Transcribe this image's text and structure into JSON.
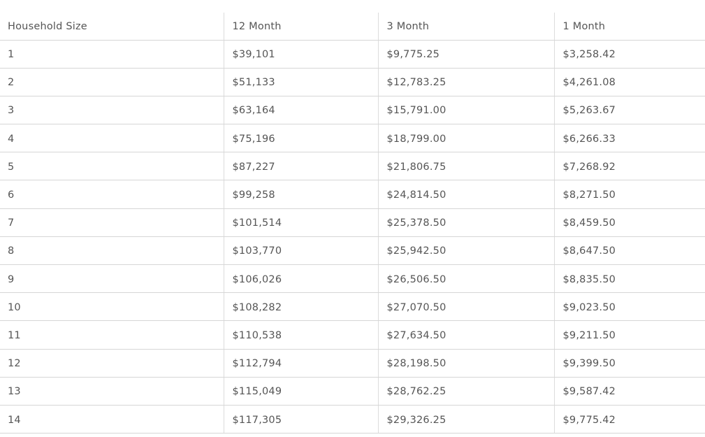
{
  "table": {
    "headers": [
      "Household Size",
      "12 Month",
      "3 Month",
      "1 Month"
    ],
    "rows": [
      [
        "1",
        "$39,101",
        "$9,775.25",
        "$3,258.42"
      ],
      [
        "2",
        "$51,133",
        "$12,783.25",
        "$4,261.08"
      ],
      [
        "3",
        "$63,164",
        "$15,791.00",
        "$5,263.67"
      ],
      [
        "4",
        "$75,196",
        "$18,799.00",
        "$6,266.33"
      ],
      [
        "5",
        "$87,227",
        "$21,806.75",
        "$7,268.92"
      ],
      [
        "6",
        "$99,258",
        "$24,814.50",
        "$8,271.50"
      ],
      [
        "7",
        "$101,514",
        "$25,378.50",
        "$8,459.50"
      ],
      [
        "8",
        "$103,770",
        "$25,942.50",
        "$8,647.50"
      ],
      [
        "9",
        "$106,026",
        "$26,506.50",
        "$8,835.50"
      ],
      [
        "10",
        "$108,282",
        "$27,070.50",
        "$9,023.50"
      ],
      [
        "11",
        "$110,538",
        "$27,634.50",
        "$9,211.50"
      ],
      [
        "12",
        "$112,794",
        "$28,198.50",
        "$9,399.50"
      ],
      [
        "13",
        "$115,049",
        "$28,762.25",
        "$9,587.42"
      ],
      [
        "14",
        "$117,305",
        "$29,326.25",
        "$9,775.42"
      ]
    ]
  }
}
